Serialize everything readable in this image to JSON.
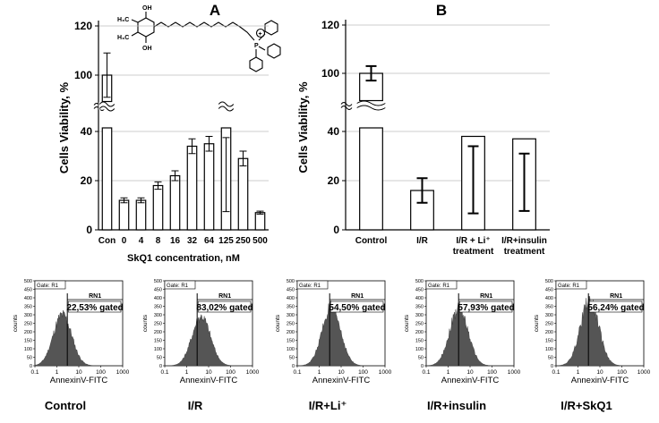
{
  "panel_a_title": "A",
  "panel_b_title": "B",
  "structure": {
    "hydroxyl_top": "OH",
    "hydroxyl_bottom": "OH",
    "methyl_top": "H₃C",
    "methyl_bottom": "H₃C",
    "phosphorus": "P",
    "charge": "+"
  },
  "chart_data": [
    {
      "type": "bar",
      "panel": "A",
      "title": "",
      "xlabel": "SkQ1 concentration, nM",
      "ylabel": "Cells Viability, %",
      "axis_break": {
        "lower_max": 40,
        "upper_min": 90,
        "upper_ticks": [
          100,
          120
        ]
      },
      "yticks": [
        "0",
        "20",
        "40",
        "100",
        "120"
      ],
      "categories": [
        "Con",
        "0",
        "4",
        "8",
        "16",
        "32",
        "64",
        "125",
        "250",
        "500"
      ],
      "values": [
        100,
        12,
        12,
        18,
        22,
        34,
        35,
        41,
        29,
        7
      ],
      "errors": [
        9,
        1,
        1,
        1.5,
        2,
        3,
        3,
        3.5,
        3,
        0.6
      ],
      "grid": "horizontal"
    },
    {
      "type": "bar",
      "panel": "B",
      "title": "",
      "xlabel": "",
      "ylabel": "Cells Viability, %",
      "axis_break": {
        "lower_max": 40,
        "upper_min": 90,
        "upper_ticks": [
          100,
          120
        ]
      },
      "yticks": [
        "0",
        "20",
        "40",
        "100",
        "120"
      ],
      "categories": [
        [
          "Control"
        ],
        [
          "I/R"
        ],
        [
          "I/R + Li⁺",
          "treatment"
        ],
        [
          "I/R+insulin",
          "treatment"
        ]
      ],
      "values": [
        100,
        16,
        38,
        37
      ],
      "errors": [
        3,
        5,
        4,
        6
      ],
      "grid": "horizontal"
    },
    {
      "type": "histogram",
      "panels": [
        {
          "gate": "Gate: R1",
          "region": "RN1",
          "gated": "22,53% gated",
          "caption": "Control"
        },
        {
          "gate": "Gate: R1",
          "region": "RN1",
          "gated": "83,02% gated",
          "caption": "I/R"
        },
        {
          "gate": "Gate: R1",
          "region": "RN1",
          "gated": "54,50% gated",
          "caption": "I/R+Li⁺"
        },
        {
          "gate": "Gate: R1",
          "region": "RN1",
          "gated": "57,93% gated",
          "caption": "I/R+insulin"
        },
        {
          "gate": "Gate: R1",
          "region": "RN1",
          "gated": "56,24% gated",
          "caption": "I/R+SkQ1"
        }
      ],
      "xlabel": "AnnexinV-FITC",
      "ylabel": "counts",
      "xticks": [
        "0.1",
        "1",
        "10",
        "100",
        "1000"
      ],
      "yticks": [
        "0",
        "50",
        "100",
        "150",
        "200",
        "250",
        "300",
        "350",
        "400",
        "450",
        "500"
      ],
      "xlim": [
        0.1,
        1000
      ],
      "ylim": [
        0,
        500
      ],
      "gate_position": 3
    }
  ]
}
